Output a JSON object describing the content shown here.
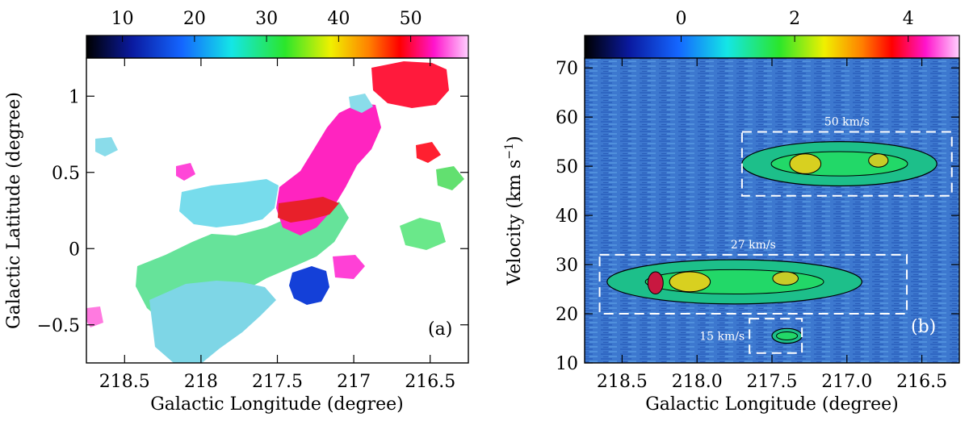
{
  "chart_data": [
    {
      "type": "heatmap",
      "panel_label": "(a)",
      "xlabel": "Galactic Longitude (degree)",
      "ylabel": "Galactic Latitude (degree)",
      "xlim": [
        218.75,
        216.25
      ],
      "ylim": [
        -0.75,
        1.25
      ],
      "x_ticks": [
        218.5,
        218,
        217.5,
        217,
        216.5
      ],
      "x_tick_labels": [
        "218.5",
        "218",
        "217.5",
        "217",
        "216.5"
      ],
      "y_ticks": [
        -0.5,
        0,
        0.5,
        1
      ],
      "y_tick_labels": [
        "−0.5",
        "0",
        "0.5",
        "1"
      ],
      "colorbar": {
        "range": [
          5,
          58
        ],
        "ticks": [
          10,
          20,
          30,
          40,
          50
        ],
        "tick_labels": [
          "10",
          "20",
          "30",
          "40",
          "50"
        ]
      },
      "regions": [
        {
          "name": "cyan-cloud",
          "value": 23
        },
        {
          "name": "green-filament",
          "value": 27
        },
        {
          "name": "magenta-ridge",
          "value": 50
        },
        {
          "name": "red-top",
          "value": 46
        },
        {
          "name": "blue-clump",
          "value": 15
        }
      ]
    },
    {
      "type": "heatmap",
      "panel_label": "(b)",
      "xlabel": "Galactic Longitude (degree)",
      "ylabel": "Velocity (km s",
      "ylabel_sup": "−1",
      "ylabel_close": ")",
      "xlim": [
        218.75,
        216.25
      ],
      "ylim": [
        10,
        72
      ],
      "x_ticks": [
        218.5,
        218.0,
        217.5,
        217.0,
        216.5
      ],
      "x_tick_labels": [
        "218.5",
        "218.0",
        "217.5",
        "217.0",
        "216.5"
      ],
      "y_ticks": [
        10,
        20,
        30,
        40,
        50,
        60,
        70
      ],
      "y_tick_labels": [
        "10",
        "20",
        "30",
        "40",
        "50",
        "60",
        "70"
      ],
      "colorbar": {
        "range": [
          -1.7,
          4.9
        ],
        "ticks": [
          0,
          2,
          4
        ],
        "tick_labels": [
          "0",
          "2",
          "4"
        ]
      },
      "boxes": [
        {
          "label": "50 km/s",
          "l_range": [
            217.7,
            216.3
          ],
          "v_range": [
            44,
            57
          ]
        },
        {
          "label": "27 km/s",
          "l_range": [
            218.65,
            216.6
          ],
          "v_range": [
            20,
            32
          ]
        },
        {
          "label": "15 km/s",
          "l_range": [
            217.65,
            217.3
          ],
          "v_range": [
            12,
            19
          ]
        }
      ],
      "emission": [
        {
          "name": "27 km/s complex",
          "l_range": [
            218.6,
            216.9
          ],
          "v_range": [
            22,
            31
          ],
          "peak": 4.2
        },
        {
          "name": "50 km/s complex",
          "l_range": [
            217.7,
            216.4
          ],
          "v_range": [
            46,
            55
          ],
          "peak": 2.6
        },
        {
          "name": "15 km/s clump",
          "l_range": [
            217.5,
            217.3
          ],
          "v_range": [
            14,
            17
          ],
          "peak": 1.3
        }
      ]
    }
  ]
}
